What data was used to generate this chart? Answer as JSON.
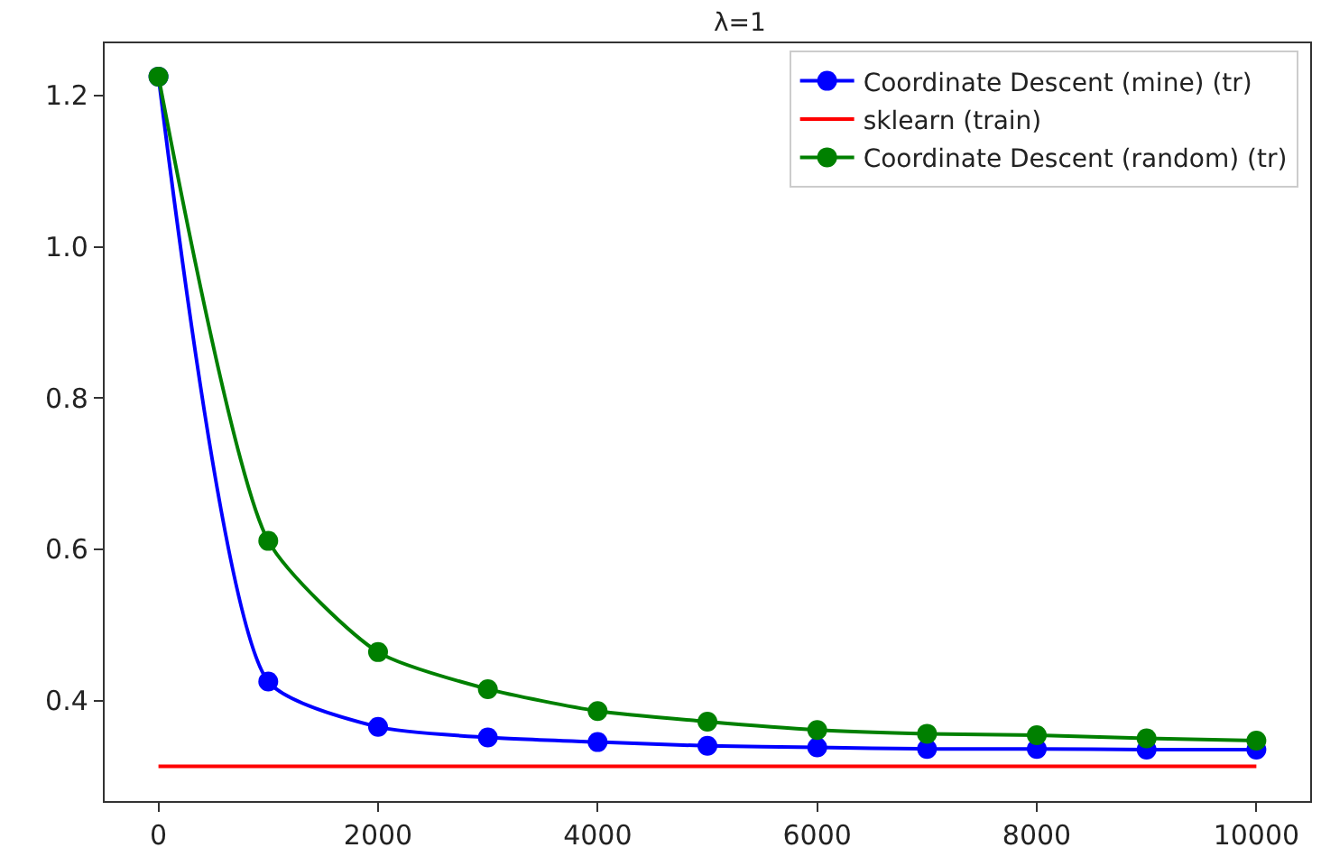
{
  "chart_data": {
    "type": "line",
    "title": "λ=1",
    "x": [
      0,
      1000,
      2000,
      3000,
      4000,
      5000,
      6000,
      7000,
      8000,
      9000,
      10000
    ],
    "series": [
      {
        "name": "Coordinate Descent (mine) (tr)",
        "color": "#0000ff",
        "marker": "circle",
        "values": [
          1.225,
          0.425,
          0.365,
          0.351,
          0.345,
          0.34,
          0.338,
          0.336,
          0.336,
          0.335,
          0.335
        ]
      },
      {
        "name": "sklearn (train)",
        "color": "#ff0000",
        "marker": "none",
        "x": [
          0,
          10000
        ],
        "values": [
          0.313,
          0.313
        ]
      },
      {
        "name": "Coordinate Descent (random) (tr)",
        "color": "#008000",
        "marker": "circle",
        "values": [
          1.225,
          0.611,
          0.464,
          0.415,
          0.386,
          0.372,
          0.361,
          0.356,
          0.354,
          0.35,
          0.347
        ]
      }
    ],
    "xlim": [
      -490,
      10490
    ],
    "xticks": [
      0,
      2000,
      4000,
      6000,
      8000,
      10000
    ],
    "ylim": [
      0.267,
      1.269
    ],
    "yticks": [
      0.4,
      0.6,
      0.8,
      {
        "value": 1,
        "label": "1.0"
      },
      1.2
    ],
    "legend": "top right"
  }
}
